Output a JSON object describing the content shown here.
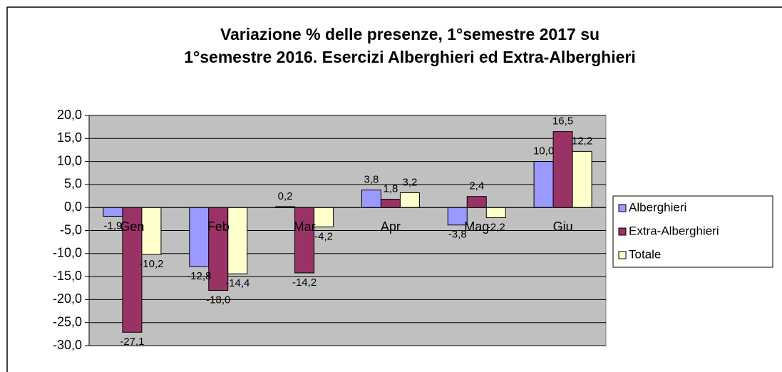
{
  "chart_data": {
    "type": "bar",
    "title": [
      "Variazione % delle presenze, 1°semestre 2017 su",
      "1°semestre 2016. Esercizi Alberghieri ed Extra-Alberghieri"
    ],
    "categories": [
      "Gen",
      "Feb",
      "Mar",
      "Apr",
      "Mag",
      "Giu"
    ],
    "series": [
      {
        "name": "Alberghieri",
        "color": "#9999ff",
        "values": [
          -1.9,
          -12.8,
          0.2,
          3.8,
          -3.8,
          10.0
        ],
        "value_labels": [
          "-1,9",
          "-12,8",
          "0,2",
          "3,8",
          "-3,8",
          "10,0"
        ]
      },
      {
        "name": "Extra-Alberghieri",
        "color": "#993366",
        "values": [
          -27.1,
          -18.0,
          -14.2,
          1.8,
          2.4,
          16.5
        ],
        "value_labels": [
          "-27,1",
          "-18,0",
          "-14,2",
          "1,8",
          "2,4",
          "16,5"
        ]
      },
      {
        "name": "Totale",
        "color": "#ffffcc",
        "values": [
          -10.2,
          -14.4,
          -4.2,
          3.2,
          -2.2,
          12.2
        ],
        "value_labels": [
          "-10,2",
          "-14,4",
          "-4,2",
          "3,2",
          "-2,2",
          "12,2"
        ]
      }
    ],
    "ylim": [
      -30,
      20
    ],
    "yticks": [
      {
        "value": -30,
        "label": "-30,0"
      },
      {
        "value": -25,
        "label": "-25,0"
      },
      {
        "value": -20,
        "label": "-20,0"
      },
      {
        "value": -15,
        "label": "-15,0"
      },
      {
        "value": -10,
        "label": "-10,0"
      },
      {
        "value": -5,
        "label": "-5,0"
      },
      {
        "value": 0,
        "label": "0,0"
      },
      {
        "value": 5,
        "label": "5,0"
      },
      {
        "value": 10,
        "label": "10,0"
      },
      {
        "value": 15,
        "label": "15,0"
      },
      {
        "value": 20,
        "label": "20,0"
      }
    ],
    "grid": true,
    "legend": "right"
  }
}
